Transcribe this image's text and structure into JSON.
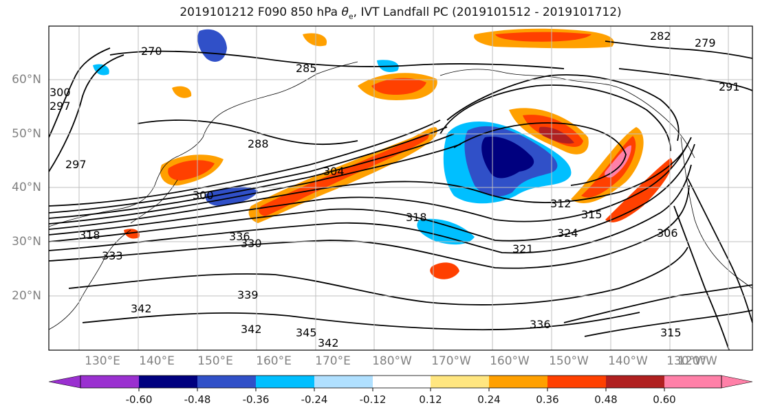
{
  "title_prefix": "2019101212 F090 850 hPa ",
  "title_symbol": "θ",
  "title_symbol_sub": "e",
  "title_suffix": ", IVT Landfall PC (2019101512 - 2019101712)",
  "map": {
    "lat_labels": [
      "60°N",
      "50°N",
      "40°N",
      "30°N",
      "20°N"
    ],
    "lon_labels": [
      "130°E",
      "140°E",
      "150°E",
      "160°E",
      "170°E",
      "180°W",
      "170°W",
      "160°W",
      "150°W",
      "140°W",
      "130°W",
      "120°W"
    ],
    "contour_labels": [
      "279",
      "282",
      "270",
      "285",
      "291",
      "297",
      "300",
      "288",
      "297",
      "300",
      "304",
      "312",
      "318",
      "315",
      "306",
      "330",
      "336",
      "333",
      "321",
      "324",
      "336",
      "339",
      "342",
      "345",
      "342",
      "342",
      "315",
      "318"
    ]
  },
  "colorbar": {
    "levels": [
      "-0.60",
      "-0.48",
      "-0.36",
      "-0.24",
      "-0.12",
      "0.12",
      "0.24",
      "0.36",
      "0.48",
      "0.60"
    ],
    "colors": [
      "#9a30d0",
      "#00007f",
      "#3050c8",
      "#00bfff",
      "#b0e0ff",
      "#ffffff",
      "#ffe680",
      "#ffa000",
      "#ff4000",
      "#b02020",
      "#ff80a8"
    ]
  }
}
